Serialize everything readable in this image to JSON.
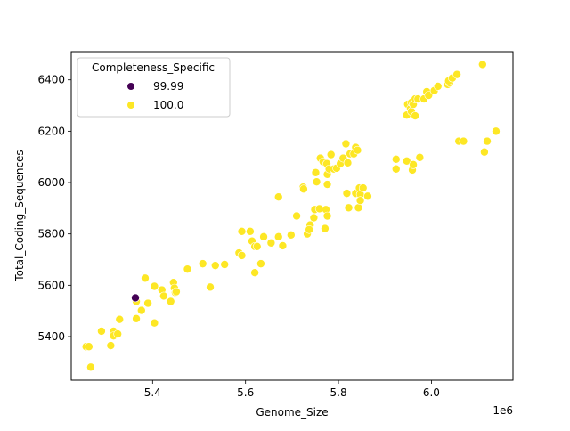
{
  "chart_data": {
    "type": "scatter",
    "title": "",
    "xlabel": "Genome_Size",
    "ylabel": "Total_Coding_Sequences",
    "x_offset_label": "1e6",
    "xlim": [
      5.225,
      6.1755
    ],
    "ylim": [
      5230,
      6510
    ],
    "x_ticks": [
      5.4,
      5.6,
      5.8,
      6.0
    ],
    "x_tick_labels": [
      "5.4",
      "5.6",
      "5.8",
      "6.0"
    ],
    "y_ticks": [
      5400,
      5600,
      5800,
      6000,
      6200,
      6400
    ],
    "y_tick_labels": [
      "5400",
      "5600",
      "5800",
      "6000",
      "6200",
      "6400"
    ],
    "grid": false,
    "legend": {
      "title": "Completeness_Specific",
      "position": "upper left",
      "entries": [
        {
          "label": "99.99",
          "color": "#440154"
        },
        {
          "label": "100.0",
          "color": "#fde725"
        }
      ]
    },
    "series": [
      {
        "name": "100.0",
        "color": "#fde725",
        "points": [
          [
            5.257,
            5361
          ],
          [
            5.263,
            5361
          ],
          [
            5.267,
            5281
          ],
          [
            5.29,
            5421
          ],
          [
            5.31,
            5365
          ],
          [
            5.316,
            5421
          ],
          [
            5.316,
            5403
          ],
          [
            5.325,
            5410
          ],
          [
            5.329,
            5467
          ],
          [
            5.365,
            5470
          ],
          [
            5.365,
            5537
          ],
          [
            5.376,
            5502
          ],
          [
            5.384,
            5628
          ],
          [
            5.39,
            5530
          ],
          [
            5.404,
            5596
          ],
          [
            5.404,
            5453
          ],
          [
            5.42,
            5582
          ],
          [
            5.424,
            5558
          ],
          [
            5.439,
            5537
          ],
          [
            5.445,
            5611
          ],
          [
            5.447,
            5589
          ],
          [
            5.449,
            5572
          ],
          [
            5.451,
            5575
          ],
          [
            5.475,
            5663
          ],
          [
            5.508,
            5684
          ],
          [
            5.524,
            5593
          ],
          [
            5.535,
            5677
          ],
          [
            5.555,
            5681
          ],
          [
            5.586,
            5726
          ],
          [
            5.592,
            5716
          ],
          [
            5.592,
            5810
          ],
          [
            5.61,
            5810
          ],
          [
            5.614,
            5772
          ],
          [
            5.62,
            5751
          ],
          [
            5.625,
            5751
          ],
          [
            5.62,
            5649
          ],
          [
            5.633,
            5684
          ],
          [
            5.639,
            5789
          ],
          [
            5.655,
            5765
          ],
          [
            5.671,
            5944
          ],
          [
            5.671,
            5789
          ],
          [
            5.68,
            5754
          ],
          [
            5.698,
            5796
          ],
          [
            5.71,
            5870
          ],
          [
            5.724,
            5982
          ],
          [
            5.725,
            5975
          ],
          [
            5.733,
            5800
          ],
          [
            5.739,
            5835
          ],
          [
            5.737,
            5817
          ],
          [
            5.747,
            5863
          ],
          [
            5.749,
            5895
          ],
          [
            5.751,
            6039
          ],
          [
            5.753,
            6003
          ],
          [
            5.759,
            5898
          ],
          [
            5.761,
            6095
          ],
          [
            5.767,
            6081
          ],
          [
            5.771,
            5821
          ],
          [
            5.773,
            5895
          ],
          [
            5.775,
            6074
          ],
          [
            5.776,
            6032
          ],
          [
            5.776,
            5993
          ],
          [
            5.776,
            5870
          ],
          [
            5.78,
            6053
          ],
          [
            5.784,
            6109
          ],
          [
            5.79,
            6053
          ],
          [
            5.796,
            6056
          ],
          [
            5.804,
            6074
          ],
          [
            5.81,
            6095
          ],
          [
            5.816,
            6151
          ],
          [
            5.818,
            5958
          ],
          [
            5.82,
            6077
          ],
          [
            5.822,
            5902
          ],
          [
            5.825,
            6112
          ],
          [
            5.833,
            6112
          ],
          [
            5.837,
            6137
          ],
          [
            5.837,
            5958
          ],
          [
            5.841,
            6126
          ],
          [
            5.843,
            5902
          ],
          [
            5.845,
            5979
          ],
          [
            5.847,
            5954
          ],
          [
            5.847,
            5930
          ],
          [
            5.853,
            5979
          ],
          [
            5.863,
            5947
          ],
          [
            5.924,
            6091
          ],
          [
            5.924,
            6053
          ],
          [
            5.947,
            6263
          ],
          [
            5.949,
            6305
          ],
          [
            5.947,
            6084
          ],
          [
            5.955,
            6288
          ],
          [
            5.957,
            6312
          ],
          [
            5.957,
            6277
          ],
          [
            5.959,
            6049
          ],
          [
            5.961,
            6305
          ],
          [
            5.961,
            6070
          ],
          [
            5.965,
            6326
          ],
          [
            5.965,
            6260
          ],
          [
            5.971,
            6326
          ],
          [
            5.975,
            6098
          ],
          [
            5.984,
            6326
          ],
          [
            5.99,
            6354
          ],
          [
            5.994,
            6340
          ],
          [
            6.006,
            6358
          ],
          [
            6.014,
            6375
          ],
          [
            6.035,
            6382
          ],
          [
            6.039,
            6389
          ],
          [
            6.037,
            6396
          ],
          [
            6.045,
            6407
          ],
          [
            6.055,
            6421
          ],
          [
            6.059,
            6161
          ],
          [
            6.069,
            6161
          ],
          [
            6.11,
            6460
          ],
          [
            6.114,
            6119
          ],
          [
            6.12,
            6161
          ],
          [
            6.139,
            6200
          ]
        ]
      },
      {
        "name": "99.99",
        "color": "#440154",
        "points": [
          [
            5.363,
            5551
          ]
        ]
      }
    ]
  }
}
